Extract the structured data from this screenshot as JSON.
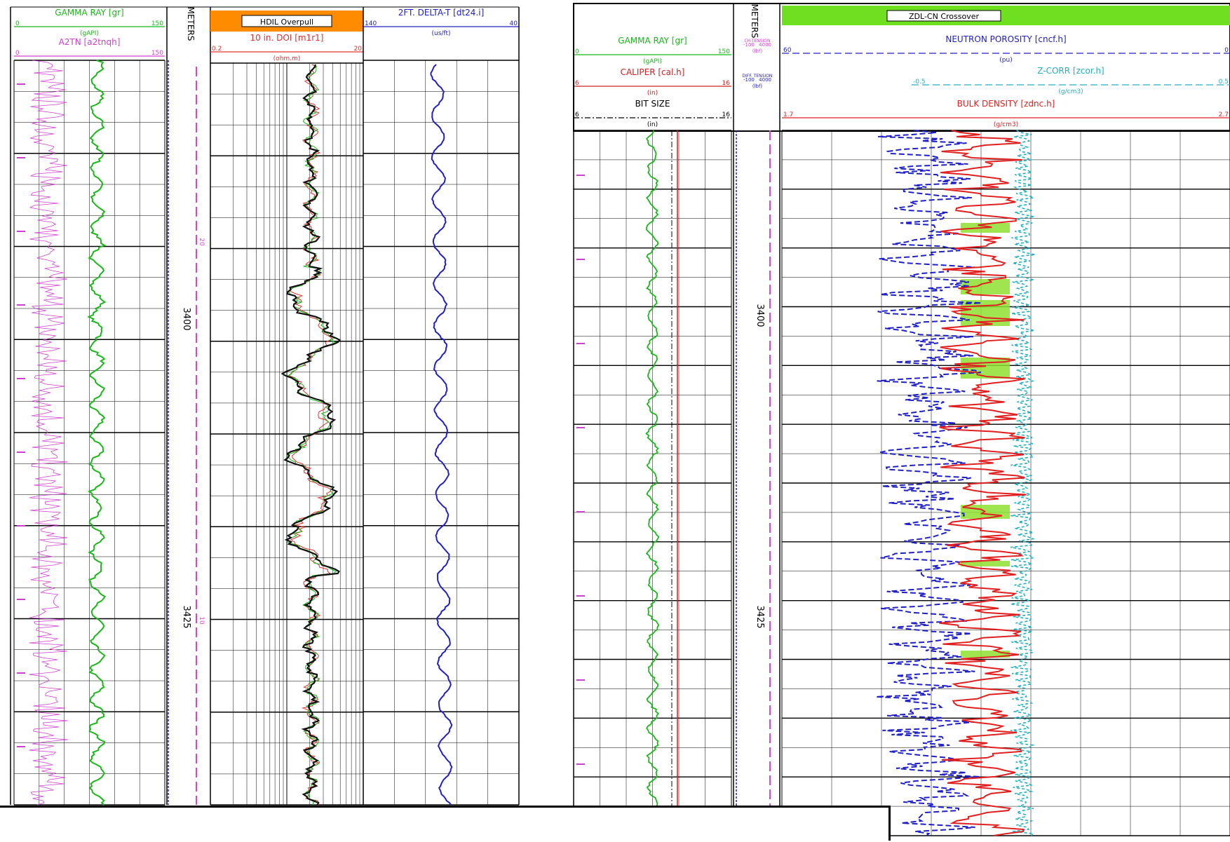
{
  "panels": [
    {
      "id": "left",
      "tracks": {
        "gr": {
          "headers": [
            {
              "label": "GAMMA RAY  [gr]",
              "scale_left": "0",
              "scale_right": "150",
              "unit": "(gAPI)",
              "color": "#18b818",
              "style": "solid"
            },
            {
              "label": "A2TN  [a2tnqh]",
              "scale_left": "0",
              "scale_right": "150",
              "unit": "",
              "color": "#d040d0",
              "style": "solid"
            }
          ]
        },
        "depth": {
          "label": "METERS",
          "depths": [
            "3400",
            "3425"
          ],
          "small_marks": [
            "20",
            "10"
          ]
        },
        "res": {
          "banner": "HDIL Overpull",
          "banner_color": "#ff8c00",
          "headers": [
            {
              "label": "10 in. DOI  [m1r1]",
              "scale_left": "0.2",
              "scale_right": "20",
              "unit": "(ohm.m)",
              "color": "#e03030",
              "style": "solid"
            }
          ]
        },
        "sonic": {
          "headers": [
            {
              "label": "2FT. DELTA-T  [dt24.i]",
              "scale_left": "140",
              "scale_right": "40",
              "unit": "(us/ft)",
              "color": "#2020c8",
              "style": "solid"
            }
          ]
        }
      }
    },
    {
      "id": "right",
      "tracks": {
        "gr": {
          "headers": [
            {
              "label": "GAMMA RAY  [gr]",
              "scale_left": "0",
              "scale_right": "150",
              "unit": "(gAPI)",
              "color": "#18b818",
              "style": "solid"
            },
            {
              "label": "CALIPER  [cal.h]",
              "scale_left": "6",
              "scale_right": "16",
              "unit": "(in)",
              "color": "#d02020",
              "style": "solid"
            },
            {
              "label": "BIT SIZE",
              "scale_left": "6",
              "scale_right": "16",
              "unit": "(in)",
              "color": "#000000",
              "style": "dashdot"
            }
          ]
        },
        "depth": {
          "label": "METERS",
          "depths": [
            "3400",
            "3425"
          ],
          "tension_headers": [
            {
              "label": "CH-TENSION",
              "scale_left": "-100",
              "scale_right": "4000",
              "unit": "(lbf)",
              "color": "#d040d0"
            },
            {
              "label": "DIFF. TENSION",
              "scale_left": "-100",
              "scale_right": "4000",
              "unit": "(lbf)",
              "color": "#2020c8"
            }
          ]
        },
        "density": {
          "banner": "ZDL-CN Crossover",
          "banner_color": "#6fe020",
          "headers": [
            {
              "label": "NEUTRON POROSITY  [cncf.h]",
              "scale_left": "60",
              "scale_right": "0",
              "unit": "(pu)",
              "color": "#2020c8",
              "style": "dashed"
            },
            {
              "label": "Z-CORR  [zcor.h]",
              "scale_left": "-0.5",
              "scale_right": "0.5",
              "unit": "(g/cm3)",
              "color": "#20b0c0",
              "style": "dashed"
            },
            {
              "label": "BULK DENSITY  [zdnc.h]",
              "scale_left": "1.7",
              "scale_right": "2.7",
              "unit": "(g/cm3)",
              "color": "#e02020",
              "style": "solid"
            }
          ]
        }
      }
    }
  ],
  "colors": {
    "gr": "#18b818",
    "a2tn": "#d040d0",
    "res": "#111111",
    "res_alt": "#e03030",
    "res_alt2": "#18b818",
    "sonic": "#2020c8",
    "depth_dash": "#e040e0",
    "cal": "#d02020",
    "neutron": "#2020c8",
    "zcorr": "#20b0c0",
    "density": "#e02020",
    "crossover_fill": "#8ee030",
    "grid": "#000000"
  },
  "chart_data": [
    {
      "type": "line",
      "title": "",
      "y_axis": {
        "label": "METERS",
        "ticks": [
          "3400",
          "3425"
        ]
      },
      "series": [
        {
          "name": "GAMMA RAY [gr]",
          "unit": "gAPI",
          "range": [
            0,
            150
          ],
          "color": "#18b818",
          "depth_samples": [
            0.02,
            0.1,
            0.2,
            0.3,
            0.4,
            0.5,
            0.6,
            0.7,
            0.8,
            0.9,
            0.98
          ],
          "values": [
            56,
            59,
            66,
            57,
            59,
            58,
            57,
            58,
            62,
            57,
            58
          ]
        },
        {
          "name": "A2TN [a2tnqh]",
          "unit": "",
          "range": [
            0,
            150
          ],
          "color": "#d040d0",
          "depth_samples": [
            0.02,
            0.25,
            0.5,
            0.75,
            0.98
          ],
          "values": [
            20,
            25,
            22,
            18,
            24
          ]
        },
        {
          "name": "10 in. DOI [m1r1]",
          "unit": "ohm.m",
          "range": [
            0.2,
            20
          ],
          "color": "#111111",
          "depth_samples": [
            0.02,
            0.1,
            0.2,
            0.3,
            0.4,
            0.5,
            0.6,
            0.7,
            0.8,
            0.9,
            0.98
          ],
          "values": [
            2.5,
            2.8,
            3.5,
            6.0,
            10.0,
            12.0,
            4.0,
            6.0,
            3.5,
            2.0,
            1.5
          ]
        },
        {
          "name": "2FT. DELTA-T [dt24.i]",
          "unit": "us/ft",
          "range": [
            140,
            40
          ],
          "color": "#2020c8",
          "depth_samples": [
            0.02,
            0.2,
            0.4,
            0.6,
            0.8,
            0.98
          ],
          "values": [
            74,
            76,
            80,
            82,
            84,
            82
          ]
        }
      ]
    },
    {
      "type": "line",
      "title": "ZDL-CN Crossover",
      "y_axis": {
        "label": "METERS",
        "ticks": [
          "3400",
          "3425"
        ]
      },
      "series": [
        {
          "name": "GAMMA RAY [gr]",
          "unit": "gAPI",
          "range": [
            0,
            150
          ],
          "color": "#18b818",
          "depth_samples": [
            0.02,
            0.2,
            0.4,
            0.6,
            0.8,
            0.98
          ],
          "values": [
            50,
            58,
            55,
            53,
            52,
            58
          ]
        },
        {
          "name": "CALIPER [cal.h]",
          "unit": "in",
          "range": [
            6,
            16
          ],
          "color": "#d02020",
          "depth_samples": [
            0.0,
            1.0
          ],
          "values": [
            8.4,
            8.4
          ]
        },
        {
          "name": "NEUTRON POROSITY [cncf.h]",
          "unit": "pu",
          "range": [
            60,
            0
          ],
          "color": "#2020c8",
          "depth_samples": [
            0.02,
            0.15,
            0.3,
            0.45,
            0.6,
            0.75,
            0.9,
            0.98
          ],
          "values": [
            38,
            25,
            30,
            18,
            35,
            28,
            40,
            45
          ]
        },
        {
          "name": "BULK DENSITY [zdnc.h]",
          "unit": "g/cm3",
          "range": [
            1.7,
            2.7
          ],
          "color": "#e02020",
          "depth_samples": [
            0.02,
            0.15,
            0.3,
            0.45,
            0.6,
            0.75,
            0.9,
            0.98
          ],
          "values": [
            2.45,
            2.35,
            2.3,
            2.25,
            2.4,
            2.3,
            2.4,
            2.45
          ]
        },
        {
          "name": "Z-CORR [zcor.h]",
          "unit": "g/cm3",
          "range": [
            -0.5,
            0.5
          ],
          "color": "#20b0c0",
          "depth_samples": [
            0.0,
            1.0
          ],
          "values": [
            0.0,
            0.02
          ]
        }
      ]
    }
  ]
}
